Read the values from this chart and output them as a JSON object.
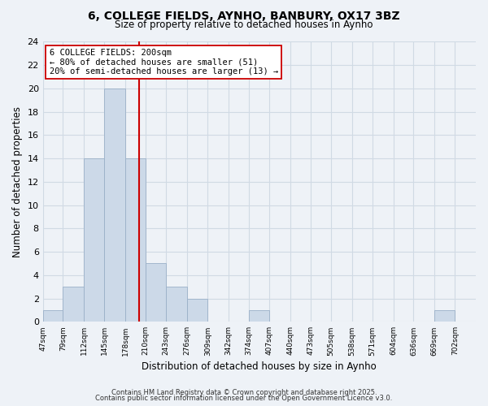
{
  "title": "6, COLLEGE FIELDS, AYNHO, BANBURY, OX17 3BZ",
  "subtitle": "Size of property relative to detached houses in Aynho",
  "xlabel": "Distribution of detached houses by size in Aynho",
  "ylabel": "Number of detached properties",
  "bar_color": "#ccd9e8",
  "bar_edge_color": "#9ab0c8",
  "bin_labels": [
    "47sqm",
    "79sqm",
    "112sqm",
    "145sqm",
    "178sqm",
    "210sqm",
    "243sqm",
    "276sqm",
    "309sqm",
    "342sqm",
    "374sqm",
    "407sqm",
    "440sqm",
    "473sqm",
    "505sqm",
    "538sqm",
    "571sqm",
    "604sqm",
    "636sqm",
    "669sqm",
    "702sqm"
  ],
  "bin_edges": [
    47,
    79,
    112,
    145,
    178,
    210,
    243,
    276,
    309,
    342,
    374,
    407,
    440,
    473,
    505,
    538,
    571,
    604,
    636,
    669,
    702,
    735
  ],
  "counts": [
    1,
    3,
    14,
    20,
    14,
    5,
    3,
    2,
    0,
    0,
    1,
    0,
    0,
    0,
    0,
    0,
    0,
    0,
    0,
    1,
    0
  ],
  "ylim": [
    0,
    24
  ],
  "yticks": [
    0,
    2,
    4,
    6,
    8,
    10,
    12,
    14,
    16,
    18,
    20,
    22,
    24
  ],
  "property_line_x": 200,
  "property_line_color": "#cc0000",
  "annotation_title": "6 COLLEGE FIELDS: 200sqm",
  "annotation_line1": "← 80% of detached houses are smaller (51)",
  "annotation_line2": "20% of semi-detached houses are larger (13) →",
  "annotation_box_color": "#ffffff",
  "annotation_box_edge": "#cc0000",
  "grid_color": "#d0dae4",
  "background_color": "#eef2f7",
  "footer_line1": "Contains HM Land Registry data © Crown copyright and database right 2025.",
  "footer_line2": "Contains public sector information licensed under the Open Government Licence v3.0."
}
